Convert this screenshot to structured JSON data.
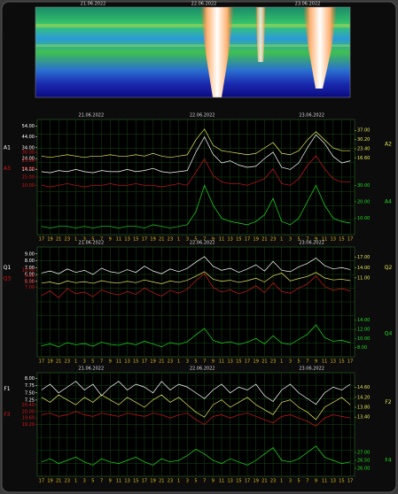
{
  "spectrogram": {
    "dates": [
      "21.06.2022",
      "22.06.2022",
      "23.06.2022"
    ]
  },
  "chart_data": [
    {
      "type": "line",
      "annotations": [
        "21.06.2022",
        "22.06.2022",
        "23.06.2022"
      ],
      "categories": [
        "17",
        "19",
        "21",
        "23",
        "1",
        "3",
        "5",
        "7",
        "9",
        "11",
        "13",
        "15",
        "17",
        "19",
        "21",
        "23",
        "1",
        "3",
        "5",
        "7",
        "9",
        "11",
        "13",
        "15",
        "17",
        "19",
        "21",
        "23",
        "1",
        "3",
        "5",
        "7",
        "9",
        "11",
        "13",
        "15",
        "17"
      ],
      "series": [
        {
          "name": "A1",
          "color": "#ffffff",
          "side": "left",
          "ylim": [
            -46,
            60
          ],
          "ticks": [
            {
              "value": 54,
              "label": "54.00"
            },
            {
              "value": 44,
              "label": "44.00"
            },
            {
              "value": 34,
              "label": "34.00"
            },
            {
              "value": 24,
              "label": "24.00"
            },
            {
              "value": 14,
              "label": "14.00"
            }
          ],
          "values": [
            12,
            11,
            13,
            12,
            14,
            12,
            11,
            13,
            12,
            12,
            14,
            12,
            13,
            15,
            12,
            11,
            12,
            13,
            30,
            44,
            28,
            20,
            22,
            18,
            16,
            17,
            24,
            30,
            16,
            14,
            20,
            34,
            46,
            38,
            26,
            20,
            22
          ]
        },
        {
          "name": "A2",
          "color": "#e8e85a",
          "side": "right",
          "ylim": [
            -40,
            45
          ],
          "ticks": [
            {
              "value": 37,
              "label": "37.00"
            },
            {
              "value": 30.2,
              "label": "30.20"
            },
            {
              "value": 23.4,
              "label": "23.40"
            },
            {
              "value": 16.6,
              "label": "16.60"
            }
          ],
          "values": [
            18,
            17,
            18,
            19,
            18,
            17,
            18,
            18,
            19,
            18,
            18,
            19,
            18,
            20,
            18,
            17,
            18,
            19,
            30,
            38,
            26,
            22,
            21,
            20,
            19,
            20,
            24,
            28,
            20,
            19,
            22,
            30,
            36,
            30,
            24,
            22,
            22
          ]
        },
        {
          "name": "A3",
          "color": "#d01818",
          "side": "left",
          "ylim": [
            -20,
            50
          ],
          "ticks": [
            {
              "value": 30,
              "label": "30.00"
            },
            {
              "value": 25,
              "label": "25.00"
            },
            {
              "value": 20,
              "label": "20.00"
            },
            {
              "value": 15,
              "label": "15.00"
            },
            {
              "value": 10,
              "label": "10.00"
            }
          ],
          "values": [
            10,
            9,
            10,
            11,
            10,
            9,
            10,
            10,
            11,
            10,
            10,
            11,
            10,
            10,
            9,
            10,
            11,
            10,
            18,
            26,
            16,
            12,
            11,
            11,
            10,
            12,
            14,
            20,
            11,
            10,
            14,
            22,
            28,
            20,
            14,
            12,
            12
          ]
        },
        {
          "name": "A4",
          "color": "#22dd22",
          "side": "right",
          "ylim": [
            0,
            70
          ],
          "ticks": [
            {
              "value": 30,
              "label": "30.00"
            },
            {
              "value": 20,
              "label": "20.00"
            },
            {
              "value": 10,
              "label": "10.00"
            }
          ],
          "values": [
            5,
            4,
            5,
            5,
            4,
            5,
            4,
            5,
            5,
            4,
            5,
            5,
            4,
            6,
            5,
            4,
            5,
            6,
            14,
            30,
            18,
            10,
            8,
            7,
            6,
            8,
            12,
            22,
            8,
            6,
            10,
            20,
            30,
            18,
            10,
            8,
            7
          ]
        }
      ]
    },
    {
      "type": "line",
      "annotations": [
        "21.06.2022",
        "22.06.2022",
        "23.06.2022"
      ],
      "categories": [
        "17",
        "19",
        "21",
        "23",
        "1",
        "3",
        "5",
        "7",
        "9",
        "11",
        "13",
        "15",
        "17",
        "19",
        "21",
        "23",
        "1",
        "3",
        "5",
        "7",
        "9",
        "11",
        "13",
        "15",
        "17",
        "19",
        "21",
        "23",
        "1",
        "3",
        "5",
        "7",
        "9",
        "11",
        "13",
        "15",
        "17"
      ],
      "series": [
        {
          "name": "Q1",
          "color": "#ffffff",
          "side": "left",
          "ylim": [
            -6,
            10
          ],
          "ticks": [
            {
              "value": 9,
              "label": "9.00"
            },
            {
              "value": 8,
              "label": "8.00"
            },
            {
              "value": 7,
              "label": "7.00"
            },
            {
              "value": 6,
              "label": "6.00"
            },
            {
              "value": 5,
              "label": "5.00"
            }
          ],
          "values": [
            6.2,
            6.5,
            6.1,
            6.8,
            6.3,
            6.6,
            6.0,
            6.9,
            6.4,
            6.2,
            6.7,
            6.3,
            7.2,
            6.5,
            6.1,
            6.8,
            6.4,
            6.9,
            7.8,
            8.6,
            7.2,
            6.6,
            6.9,
            6.3,
            6.8,
            7.4,
            6.5,
            7.9,
            6.6,
            6.4,
            7.1,
            7.6,
            8.4,
            7.3,
            6.8,
            7.0,
            6.7
          ]
        },
        {
          "name": "Q2",
          "color": "#e8e85a",
          "side": "right",
          "ylim": [
            -12,
            20
          ],
          "ticks": [
            {
              "value": 17,
              "label": "17.00"
            },
            {
              "value": 14,
              "label": "14.00"
            },
            {
              "value": 11,
              "label": "11.00"
            }
          ],
          "values": [
            9.5,
            9.8,
            9.2,
            10.1,
            9.6,
            9.9,
            9.4,
            10.2,
            9.7,
            9.5,
            10.0,
            9.6,
            10.4,
            9.8,
            9.3,
            10.1,
            9.7,
            10.3,
            11.5,
            12.8,
            10.6,
            10.0,
            10.3,
            9.7,
            10.2,
            10.9,
            9.8,
            11.6,
            12.4,
            10.1,
            10.8,
            11.4,
            12.6,
            11.0,
            10.4,
            10.6,
            10.2
          ]
        },
        {
          "name": "Q3",
          "color": "#d01818",
          "side": "left",
          "ylim": [
            -5,
            14
          ],
          "ticks": [
            {
              "value": 10,
              "label": "10.00"
            },
            {
              "value": 9,
              "label": "9.00"
            },
            {
              "value": 8,
              "label": "8.00"
            },
            {
              "value": 7,
              "label": "7.00"
            }
          ],
          "values": [
            5.6,
            6.4,
            5.2,
            6.8,
            5.9,
            6.2,
            5.4,
            6.6,
            6.0,
            5.7,
            6.3,
            5.8,
            6.9,
            6.1,
            5.5,
            6.5,
            6.0,
            6.7,
            8.2,
            9.4,
            7.0,
            6.2,
            6.6,
            5.9,
            6.4,
            7.3,
            6.1,
            7.8,
            6.3,
            6.0,
            6.9,
            7.6,
            9.0,
            7.2,
            6.5,
            6.8,
            6.4
          ]
        },
        {
          "name": "Q4",
          "color": "#22dd22",
          "side": "right",
          "ylim": [
            6,
            30
          ],
          "ticks": [
            {
              "value": 14,
              "label": "14.00"
            },
            {
              "value": 12,
              "label": "12.00"
            },
            {
              "value": 10,
              "label": "10.00"
            },
            {
              "value": 8,
              "label": "8.00"
            }
          ],
          "values": [
            8.4,
            8.8,
            8.2,
            9.1,
            8.6,
            8.9,
            8.3,
            9.2,
            8.7,
            8.5,
            9.0,
            8.6,
            9.4,
            8.8,
            8.2,
            9.1,
            8.7,
            9.3,
            10.8,
            12.2,
            9.6,
            9.0,
            9.3,
            8.7,
            9.2,
            10.0,
            8.8,
            10.6,
            9.0,
            8.7,
            9.8,
            10.9,
            13.0,
            10.2,
            9.4,
            9.6,
            9.1
          ]
        }
      ]
    },
    {
      "type": "line",
      "annotations": [
        "21.06.2022",
        "22.06.2022",
        "23.06.2022"
      ],
      "categories": [
        "17",
        "19",
        "21",
        "23",
        "1",
        "3",
        "5",
        "7",
        "9",
        "11",
        "13",
        "15",
        "17",
        "19",
        "21",
        "23",
        "1",
        "3",
        "5",
        "7",
        "9",
        "11",
        "13",
        "15",
        "17",
        "19",
        "21",
        "23",
        "1",
        "3",
        "5",
        "7",
        "9",
        "11",
        "13",
        "15",
        "17"
      ],
      "series": [
        {
          "name": "F1",
          "color": "#ffffff",
          "side": "left",
          "ylim": [
            4.6,
            8.2
          ],
          "ticks": [
            {
              "value": 8,
              "label": "8.00"
            },
            {
              "value": 7.75,
              "label": "7.75"
            },
            {
              "value": 7.5,
              "label": "7.50"
            },
            {
              "value": 7.25,
              "label": "7.25"
            }
          ],
          "values": [
            7.6,
            7.8,
            7.5,
            7.7,
            7.9,
            7.6,
            7.8,
            7.4,
            7.7,
            7.9,
            7.6,
            7.8,
            7.7,
            7.5,
            7.9,
            7.6,
            7.8,
            7.7,
            7.5,
            7.3,
            7.6,
            7.8,
            7.5,
            7.7,
            7.6,
            7.8,
            7.4,
            7.2,
            7.6,
            7.8,
            7.5,
            7.3,
            7.1,
            7.5,
            7.7,
            7.6,
            7.8
          ]
        },
        {
          "name": "F2",
          "color": "#e8e85a",
          "side": "right",
          "ylim": [
            11,
            15.2
          ],
          "ticks": [
            {
              "value": 14.6,
              "label": "14.60"
            },
            {
              "value": 14.2,
              "label": "14.20"
            },
            {
              "value": 13.8,
              "label": "13.80"
            },
            {
              "value": 13.4,
              "label": "13.40"
            }
          ],
          "values": [
            14.2,
            14.0,
            14.3,
            14.1,
            13.9,
            14.2,
            14.0,
            14.3,
            14.1,
            13.9,
            14.2,
            14.0,
            13.8,
            14.1,
            14.3,
            14.0,
            14.2,
            13.9,
            13.6,
            13.4,
            13.9,
            14.1,
            13.8,
            14.0,
            14.2,
            13.9,
            13.7,
            13.5,
            14.0,
            14.1,
            13.8,
            13.6,
            13.3,
            13.8,
            14.0,
            14.2,
            13.9
          ]
        },
        {
          "name": "F3",
          "color": "#d01818",
          "side": "left",
          "ylim": [
            16,
            22.4
          ],
          "ticks": [
            {
              "value": 20.4,
              "label": "20.40"
            },
            {
              "value": 20,
              "label": "20.00"
            },
            {
              "value": 19.6,
              "label": "19.60"
            },
            {
              "value": 19.2,
              "label": "19.20"
            }
          ],
          "values": [
            19.8,
            19.9,
            19.7,
            19.8,
            20.0,
            19.8,
            19.7,
            19.9,
            19.8,
            19.7,
            19.9,
            19.8,
            19.7,
            19.9,
            19.8,
            19.6,
            19.8,
            19.9,
            19.5,
            19.2,
            19.7,
            19.8,
            19.6,
            19.8,
            19.9,
            19.7,
            19.5,
            19.3,
            19.7,
            19.8,
            19.6,
            19.4,
            19.1,
            19.6,
            19.8,
            19.7,
            19.6
          ]
        },
        {
          "name": "F4",
          "color": "#22dd22",
          "side": "right",
          "ylim": [
            25.5,
            32
          ],
          "ticks": [
            {
              "value": 27,
              "label": "27.00"
            },
            {
              "value": 26.5,
              "label": "26.50"
            },
            {
              "value": 26,
              "label": "26.00"
            }
          ],
          "values": [
            26.4,
            26.6,
            26.3,
            26.5,
            26.7,
            26.4,
            26.2,
            26.6,
            26.4,
            26.3,
            26.5,
            26.7,
            26.4,
            26.2,
            26.6,
            26.4,
            26.5,
            26.8,
            27.2,
            26.9,
            26.5,
            26.3,
            26.6,
            26.4,
            26.2,
            26.5,
            26.9,
            27.3,
            26.5,
            26.4,
            26.6,
            27.0,
            27.4,
            26.7,
            26.5,
            26.3,
            26.4
          ]
        }
      ]
    }
  ]
}
